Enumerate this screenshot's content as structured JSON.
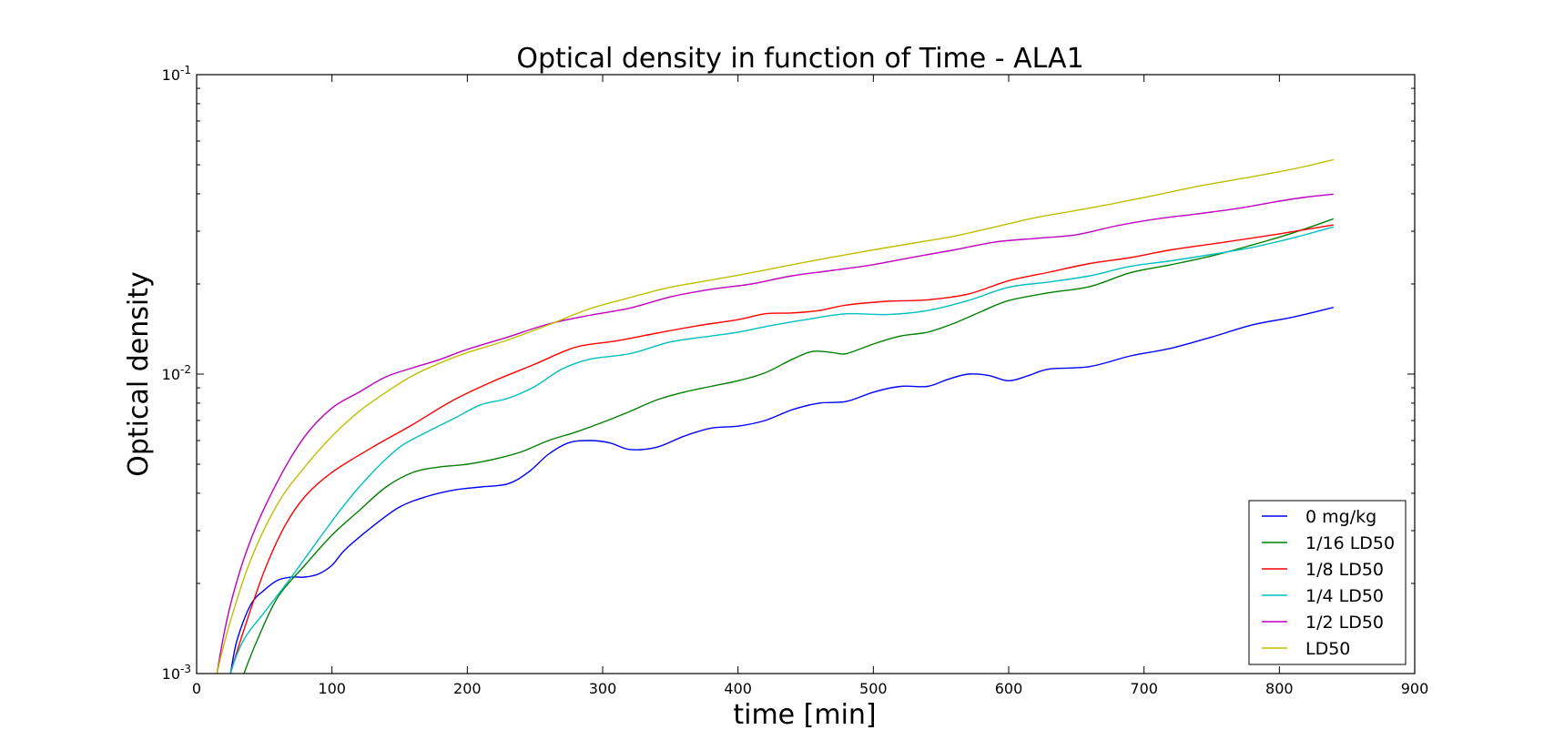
{
  "chart_data": {
    "type": "line",
    "title": "Optical density in function of Time - ALA1",
    "xlabel": "time [min]",
    "ylabel": "Optical density",
    "yscale": "log",
    "xlim": [
      0,
      900
    ],
    "ylim": [
      0.001,
      0.1
    ],
    "x_ticks": [
      "0",
      "100",
      "200",
      "300",
      "400",
      "500",
      "600",
      "700",
      "800",
      "900"
    ],
    "y_ticks": [
      {
        "base": "10",
        "exp": "-3"
      },
      {
        "base": "10",
        "exp": "-2"
      },
      {
        "base": "10",
        "exp": "-1"
      }
    ],
    "grid": false,
    "legend_position": "lower right",
    "series": [
      {
        "name": "0 mg/kg",
        "color": "#0000ff",
        "points": [
          [
            20,
            0.00075
          ],
          [
            25,
            0.001
          ],
          [
            30,
            0.0013
          ],
          [
            40,
            0.0017
          ],
          [
            50,
            0.0019
          ],
          [
            60,
            0.00205
          ],
          [
            70,
            0.0021
          ],
          [
            80,
            0.0021
          ],
          [
            90,
            0.00215
          ],
          [
            100,
            0.0023
          ],
          [
            110,
            0.0026
          ],
          [
            130,
            0.0031
          ],
          [
            150,
            0.0036
          ],
          [
            170,
            0.0039
          ],
          [
            190,
            0.0041
          ],
          [
            210,
            0.0042
          ],
          [
            230,
            0.0043
          ],
          [
            245,
            0.0047
          ],
          [
            260,
            0.0054
          ],
          [
            275,
            0.0059
          ],
          [
            290,
            0.006
          ],
          [
            305,
            0.0059
          ],
          [
            320,
            0.0056
          ],
          [
            340,
            0.0057
          ],
          [
            360,
            0.0062
          ],
          [
            380,
            0.0066
          ],
          [
            400,
            0.0067
          ],
          [
            420,
            0.007
          ],
          [
            440,
            0.0076
          ],
          [
            460,
            0.008
          ],
          [
            480,
            0.0081
          ],
          [
            500,
            0.0087
          ],
          [
            520,
            0.0091
          ],
          [
            540,
            0.0091
          ],
          [
            555,
            0.0096
          ],
          [
            570,
            0.01
          ],
          [
            585,
            0.0099
          ],
          [
            600,
            0.0095
          ],
          [
            615,
            0.0099
          ],
          [
            630,
            0.0104
          ],
          [
            660,
            0.0106
          ],
          [
            690,
            0.0115
          ],
          [
            720,
            0.0122
          ],
          [
            750,
            0.0133
          ],
          [
            780,
            0.0146
          ],
          [
            810,
            0.0155
          ],
          [
            840,
            0.0167
          ]
        ]
      },
      {
        "name": "1/16 LD50",
        "color": "#008000",
        "points": [
          [
            28,
            0.0008
          ],
          [
            35,
            0.001
          ],
          [
            45,
            0.0013
          ],
          [
            60,
            0.0018
          ],
          [
            80,
            0.0023
          ],
          [
            100,
            0.0029
          ],
          [
            120,
            0.0035
          ],
          [
            140,
            0.0042
          ],
          [
            160,
            0.0047
          ],
          [
            180,
            0.0049
          ],
          [
            200,
            0.005
          ],
          [
            220,
            0.0052
          ],
          [
            240,
            0.0055
          ],
          [
            260,
            0.006
          ],
          [
            280,
            0.0064
          ],
          [
            300,
            0.0069
          ],
          [
            320,
            0.0075
          ],
          [
            340,
            0.0082
          ],
          [
            360,
            0.0087
          ],
          [
            380,
            0.0091
          ],
          [
            400,
            0.0095
          ],
          [
            420,
            0.0101
          ],
          [
            440,
            0.0112
          ],
          [
            455,
            0.0119
          ],
          [
            470,
            0.0118
          ],
          [
            480,
            0.0117
          ],
          [
            500,
            0.0126
          ],
          [
            520,
            0.0134
          ],
          [
            540,
            0.0138
          ],
          [
            560,
            0.0148
          ],
          [
            580,
            0.0162
          ],
          [
            600,
            0.0176
          ],
          [
            630,
            0.0187
          ],
          [
            660,
            0.0196
          ],
          [
            690,
            0.0218
          ],
          [
            720,
            0.0232
          ],
          [
            750,
            0.0248
          ],
          [
            780,
            0.027
          ],
          [
            810,
            0.0296
          ],
          [
            840,
            0.033
          ]
        ]
      },
      {
        "name": "1/8 LD50",
        "color": "#ff0000",
        "points": [
          [
            18,
            0.00075
          ],
          [
            25,
            0.001
          ],
          [
            35,
            0.0014
          ],
          [
            50,
            0.0022
          ],
          [
            65,
            0.0031
          ],
          [
            80,
            0.0039
          ],
          [
            100,
            0.0047
          ],
          [
            130,
            0.0057
          ],
          [
            160,
            0.0068
          ],
          [
            190,
            0.0082
          ],
          [
            220,
            0.0095
          ],
          [
            250,
            0.0108
          ],
          [
            280,
            0.0123
          ],
          [
            310,
            0.0129
          ],
          [
            340,
            0.0137
          ],
          [
            370,
            0.0145
          ],
          [
            400,
            0.0152
          ],
          [
            420,
            0.0159
          ],
          [
            440,
            0.016
          ],
          [
            460,
            0.0163
          ],
          [
            480,
            0.017
          ],
          [
            510,
            0.0175
          ],
          [
            540,
            0.0177
          ],
          [
            570,
            0.0185
          ],
          [
            600,
            0.0205
          ],
          [
            630,
            0.0219
          ],
          [
            660,
            0.0234
          ],
          [
            690,
            0.0245
          ],
          [
            720,
            0.026
          ],
          [
            760,
            0.0276
          ],
          [
            800,
            0.0294
          ],
          [
            840,
            0.0315
          ]
        ]
      },
      {
        "name": "1/4 LD50",
        "color": "#00bfbf",
        "points": [
          [
            20,
            0.00075
          ],
          [
            25,
            0.001
          ],
          [
            35,
            0.0013
          ],
          [
            50,
            0.0016
          ],
          [
            70,
            0.0021
          ],
          [
            90,
            0.0028
          ],
          [
            110,
            0.0037
          ],
          [
            130,
            0.0047
          ],
          [
            150,
            0.0057
          ],
          [
            170,
            0.0064
          ],
          [
            190,
            0.0071
          ],
          [
            210,
            0.0079
          ],
          [
            230,
            0.0083
          ],
          [
            250,
            0.0091
          ],
          [
            270,
            0.0104
          ],
          [
            290,
            0.0112
          ],
          [
            320,
            0.0117
          ],
          [
            350,
            0.0128
          ],
          [
            380,
            0.0134
          ],
          [
            400,
            0.0138
          ],
          [
            420,
            0.0144
          ],
          [
            450,
            0.0152
          ],
          [
            480,
            0.0159
          ],
          [
            510,
            0.0158
          ],
          [
            540,
            0.0163
          ],
          [
            570,
            0.0176
          ],
          [
            600,
            0.0195
          ],
          [
            630,
            0.0203
          ],
          [
            660,
            0.0213
          ],
          [
            690,
            0.0229
          ],
          [
            720,
            0.0239
          ],
          [
            750,
            0.0251
          ],
          [
            780,
            0.0265
          ],
          [
            810,
            0.0285
          ],
          [
            840,
            0.031
          ]
        ]
      },
      {
        "name": "1/2 LD50",
        "color": "#bf00bf",
        "points": [
          [
            12,
            0.00075
          ],
          [
            15,
            0.001
          ],
          [
            25,
            0.0017
          ],
          [
            40,
            0.0028
          ],
          [
            60,
            0.0044
          ],
          [
            80,
            0.0062
          ],
          [
            100,
            0.0077
          ],
          [
            120,
            0.0087
          ],
          [
            140,
            0.0098
          ],
          [
            160,
            0.0105
          ],
          [
            180,
            0.0112
          ],
          [
            200,
            0.0121
          ],
          [
            230,
            0.0133
          ],
          [
            260,
            0.0147
          ],
          [
            290,
            0.0157
          ],
          [
            320,
            0.0166
          ],
          [
            350,
            0.0181
          ],
          [
            380,
            0.0192
          ],
          [
            410,
            0.02
          ],
          [
            440,
            0.0213
          ],
          [
            470,
            0.0222
          ],
          [
            500,
            0.0232
          ],
          [
            530,
            0.0246
          ],
          [
            560,
            0.026
          ],
          [
            590,
            0.0276
          ],
          [
            620,
            0.0284
          ],
          [
            650,
            0.0292
          ],
          [
            680,
            0.0313
          ],
          [
            710,
            0.033
          ],
          [
            740,
            0.0343
          ],
          [
            770,
            0.0358
          ],
          [
            800,
            0.0378
          ],
          [
            820,
            0.039
          ],
          [
            840,
            0.0399
          ]
        ]
      },
      {
        "name": "LD50",
        "color": "#bfbf00",
        "points": [
          [
            10,
            0.00075
          ],
          [
            15,
            0.001
          ],
          [
            25,
            0.0015
          ],
          [
            40,
            0.0024
          ],
          [
            60,
            0.0037
          ],
          [
            80,
            0.0049
          ],
          [
            100,
            0.0062
          ],
          [
            120,
            0.0075
          ],
          [
            140,
            0.0087
          ],
          [
            160,
            0.0099
          ],
          [
            180,
            0.0109
          ],
          [
            200,
            0.0118
          ],
          [
            230,
            0.013
          ],
          [
            260,
            0.0146
          ],
          [
            290,
            0.0165
          ],
          [
            320,
            0.018
          ],
          [
            350,
            0.0195
          ],
          [
            380,
            0.0206
          ],
          [
            410,
            0.0218
          ],
          [
            440,
            0.0232
          ],
          [
            470,
            0.0246
          ],
          [
            500,
            0.026
          ],
          [
            530,
            0.0274
          ],
          [
            560,
            0.0289
          ],
          [
            590,
            0.031
          ],
          [
            620,
            0.0333
          ],
          [
            650,
            0.0352
          ],
          [
            680,
            0.0373
          ],
          [
            710,
            0.0397
          ],
          [
            740,
            0.0424
          ],
          [
            770,
            0.0448
          ],
          [
            800,
            0.0474
          ],
          [
            820,
            0.0495
          ],
          [
            840,
            0.052
          ]
        ]
      }
    ]
  }
}
